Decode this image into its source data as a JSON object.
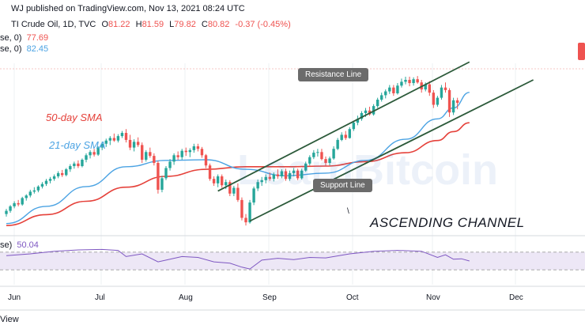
{
  "header": {
    "published": "WJ published on TradingView.com, Nov 13, 2021 08:24 UTC",
    "symbol": "TI Crude Oil, 1D, TVC",
    "o_label": "O",
    "o": "81.22",
    "h_label": "H",
    "h": "81.59",
    "l_label": "L",
    "l": "79.82",
    "c_label": "C",
    "c": "80.82",
    "change": "-0.37 (-0.45%)",
    "ma1_label": "se, 0)",
    "ma1": "77.69",
    "ma2_label": "se, 0)",
    "ma2": "82.45",
    "rsi_label": "se)",
    "rsi": "50.04"
  },
  "annotations": {
    "resistance": "Resistance Line",
    "support": "Support Line",
    "sma50": "50-day SMA",
    "sma21": "21-day SMA",
    "channel": "ASCENDING CHANNEL",
    "watermark": "LearnBitcoin",
    "footer": "View",
    "tick_mark": "\\"
  },
  "colors": {
    "up": "#26a69a",
    "down": "#ef5350",
    "sma21": "#4ba3e3",
    "sma50": "#e5413a",
    "channel": "#2c5a3a",
    "rsi_line": "#7e57c2",
    "rsi_band": "#ede7f6"
  },
  "chart_data": {
    "type": "candlestick",
    "x_axis_labels": [
      "Jun",
      "Jul",
      "Aug",
      "Sep",
      "Oct",
      "Nov",
      "Dec"
    ],
    "ylim": [
      61,
      87
    ],
    "candles": [
      [
        63.4,
        64.2,
        63.0,
        63.9
      ],
      [
        63.9,
        64.8,
        63.6,
        64.6
      ],
      [
        64.6,
        65.4,
        64.3,
        65.1
      ],
      [
        65.1,
        65.6,
        64.6,
        64.9
      ],
      [
        64.9,
        66.1,
        64.7,
        65.9
      ],
      [
        65.9,
        66.5,
        65.5,
        66.3
      ],
      [
        66.3,
        67.2,
        66.0,
        66.9
      ],
      [
        66.9,
        67.6,
        66.6,
        67.1
      ],
      [
        67.1,
        67.9,
        66.8,
        67.7
      ],
      [
        67.7,
        68.4,
        67.4,
        68.1
      ],
      [
        68.1,
        68.9,
        67.8,
        68.6
      ],
      [
        68.6,
        69.2,
        68.2,
        68.9
      ],
      [
        68.9,
        69.6,
        68.6,
        69.3
      ],
      [
        69.3,
        70.1,
        69.0,
        69.8
      ],
      [
        69.8,
        70.3,
        69.2,
        69.5
      ],
      [
        69.5,
        70.6,
        69.3,
        70.4
      ],
      [
        70.4,
        71.2,
        70.0,
        70.9
      ],
      [
        70.9,
        71.6,
        70.5,
        71.3
      ],
      [
        71.3,
        71.8,
        70.6,
        70.9
      ],
      [
        70.9,
        72.1,
        70.7,
        71.9
      ],
      [
        71.9,
        72.9,
        71.5,
        72.6
      ],
      [
        72.6,
        73.4,
        72.1,
        73.1
      ],
      [
        73.1,
        73.6,
        72.4,
        72.7
      ],
      [
        72.7,
        74.0,
        72.5,
        73.8
      ],
      [
        73.8,
        74.7,
        73.4,
        74.4
      ],
      [
        74.4,
        75.2,
        73.9,
        74.9
      ],
      [
        74.9,
        75.6,
        74.2,
        75.3
      ],
      [
        75.3,
        76.0,
        74.7,
        74.9
      ],
      [
        74.9,
        75.9,
        74.6,
        75.6
      ],
      [
        75.6,
        76.4,
        75.3,
        76.1
      ],
      [
        76.1,
        76.7,
        74.6,
        75.0
      ],
      [
        75.0,
        75.8,
        73.4,
        73.8
      ],
      [
        73.8,
        75.1,
        73.2,
        74.7
      ],
      [
        74.7,
        75.4,
        73.9,
        74.2
      ],
      [
        74.2,
        74.6,
        71.4,
        71.9
      ],
      [
        71.9,
        73.4,
        71.6,
        73.1
      ],
      [
        73.1,
        73.8,
        72.2,
        72.5
      ],
      [
        72.5,
        72.9,
        71.0,
        71.4
      ],
      [
        71.4,
        71.7,
        66.6,
        67.2
      ],
      [
        67.2,
        69.4,
        66.8,
        69.0
      ],
      [
        69.0,
        70.9,
        68.7,
        70.6
      ],
      [
        70.6,
        72.0,
        70.2,
        71.6
      ],
      [
        71.6,
        72.9,
        71.1,
        72.6
      ],
      [
        72.6,
        73.2,
        71.9,
        72.3
      ],
      [
        72.3,
        73.6,
        71.9,
        73.3
      ],
      [
        73.3,
        73.8,
        72.5,
        73.1
      ],
      [
        73.1,
        73.7,
        72.3,
        73.4
      ],
      [
        73.4,
        74.4,
        73.0,
        74.0
      ],
      [
        74.0,
        74.4,
        73.2,
        73.6
      ],
      [
        73.6,
        73.9,
        72.2,
        72.6
      ],
      [
        72.6,
        72.8,
        70.6,
        71.0
      ],
      [
        71.0,
        71.3,
        68.6,
        68.9
      ],
      [
        68.9,
        69.3,
        67.8,
        68.2
      ],
      [
        68.2,
        69.6,
        67.6,
        69.3
      ],
      [
        69.3,
        69.6,
        67.5,
        67.9
      ],
      [
        67.9,
        68.8,
        67.3,
        68.4
      ],
      [
        68.4,
        68.7,
        66.2,
        66.6
      ],
      [
        66.6,
        67.8,
        66.2,
        67.5
      ],
      [
        67.5,
        68.2,
        65.3,
        65.6
      ],
      [
        65.6,
        66.0,
        62.4,
        62.8
      ],
      [
        62.8,
        63.4,
        61.6,
        62.1
      ],
      [
        62.1,
        65.6,
        61.9,
        65.2
      ],
      [
        65.2,
        67.7,
        64.8,
        67.4
      ],
      [
        67.4,
        68.8,
        67.0,
        68.4
      ],
      [
        68.4,
        69.2,
        67.8,
        68.7
      ],
      [
        68.7,
        69.6,
        68.2,
        69.2
      ],
      [
        69.2,
        69.9,
        68.6,
        68.9
      ],
      [
        68.9,
        69.9,
        68.5,
        69.6
      ],
      [
        69.6,
        70.4,
        68.9,
        69.3
      ],
      [
        69.3,
        70.4,
        69.0,
        70.1
      ],
      [
        70.1,
        70.5,
        68.6,
        68.9
      ],
      [
        68.9,
        70.2,
        68.6,
        69.8
      ],
      [
        69.8,
        70.6,
        69.3,
        70.2
      ],
      [
        70.2,
        70.5,
        68.7,
        69.0
      ],
      [
        69.0,
        70.5,
        68.8,
        70.2
      ],
      [
        70.2,
        71.6,
        70.0,
        71.3
      ],
      [
        71.3,
        72.6,
        71.0,
        72.3
      ],
      [
        72.3,
        73.4,
        72.0,
        73.0
      ],
      [
        73.0,
        73.6,
        72.4,
        73.1
      ],
      [
        73.1,
        73.6,
        71.8,
        72.0
      ],
      [
        72.0,
        72.4,
        70.9,
        71.4
      ],
      [
        71.4,
        72.4,
        71.0,
        72.1
      ],
      [
        72.1,
        74.0,
        71.9,
        73.6
      ],
      [
        73.6,
        75.3,
        73.4,
        75.0
      ],
      [
        75.0,
        76.2,
        74.8,
        75.8
      ],
      [
        75.8,
        76.4,
        75.0,
        75.3
      ],
      [
        75.3,
        77.0,
        75.2,
        76.7
      ],
      [
        76.7,
        78.0,
        76.4,
        77.7
      ],
      [
        77.7,
        78.8,
        77.3,
        78.3
      ],
      [
        78.3,
        79.5,
        78.0,
        79.2
      ],
      [
        79.2,
        80.0,
        78.6,
        79.6
      ],
      [
        79.6,
        80.2,
        78.8,
        79.0
      ],
      [
        79.0,
        80.6,
        78.8,
        80.3
      ],
      [
        80.3,
        81.6,
        80.0,
        81.3
      ],
      [
        81.3,
        82.4,
        81.0,
        82.0
      ],
      [
        82.0,
        82.9,
        81.5,
        82.6
      ],
      [
        82.6,
        83.6,
        82.2,
        83.2
      ],
      [
        83.2,
        83.6,
        81.9,
        82.3
      ],
      [
        82.3,
        83.9,
        82.1,
        83.5
      ],
      [
        83.5,
        84.6,
        83.2,
        84.1
      ],
      [
        84.1,
        84.9,
        83.7,
        84.4
      ],
      [
        84.4,
        84.9,
        83.4,
        83.9
      ],
      [
        83.9,
        84.8,
        83.5,
        84.5
      ],
      [
        84.5,
        85.0,
        83.8,
        84.0
      ],
      [
        84.0,
        84.4,
        82.4,
        82.9
      ],
      [
        82.9,
        84.0,
        82.6,
        83.7
      ],
      [
        83.7,
        84.2,
        81.9,
        82.4
      ],
      [
        82.4,
        82.8,
        80.0,
        80.5
      ],
      [
        80.5,
        81.9,
        80.2,
        81.6
      ],
      [
        81.6,
        83.6,
        81.3,
        83.2
      ],
      [
        83.2,
        84.0,
        82.4,
        82.8
      ],
      [
        82.8,
        83.1,
        78.6,
        79.3
      ],
      [
        79.3,
        81.6,
        78.9,
        81.2
      ],
      [
        81.2,
        81.6,
        79.8,
        80.8
      ]
    ],
    "sma21": [
      [
        0,
        61.9
      ],
      [
        10,
        64.6
      ],
      [
        20,
        67.7
      ],
      [
        30,
        70.8
      ],
      [
        40,
        71.8
      ],
      [
        50,
        71.9
      ],
      [
        60,
        70.4
      ],
      [
        70,
        69.4
      ],
      [
        80,
        69.8
      ],
      [
        90,
        71.8
      ],
      [
        100,
        75.1
      ],
      [
        108,
        78.3
      ],
      [
        112,
        80.0
      ],
      [
        116,
        82.45
      ]
    ],
    "sma50": [
      [
        0,
        61.6
      ],
      [
        10,
        63.3
      ],
      [
        20,
        65.4
      ],
      [
        30,
        67.6
      ],
      [
        40,
        69.3
      ],
      [
        50,
        70.4
      ],
      [
        60,
        70.8
      ],
      [
        70,
        70.8
      ],
      [
        80,
        70.9
      ],
      [
        90,
        71.6
      ],
      [
        100,
        73.0
      ],
      [
        108,
        74.9
      ],
      [
        112,
        76.3
      ],
      [
        116,
        77.69
      ]
    ],
    "channel_lines": {
      "upper": [
        [
          53,
          67.0
        ],
        [
          116,
          87.2
        ]
      ],
      "lower": [
        [
          61,
          62.3
        ],
        [
          132,
          84.4
        ]
      ]
    },
    "rsi": {
      "ylim": [
        0,
        100
      ],
      "levels": [
        70,
        30
      ],
      "values": [
        [
          0,
          62
        ],
        [
          6,
          66
        ],
        [
          12,
          72
        ],
        [
          18,
          75
        ],
        [
          24,
          76
        ],
        [
          28,
          74
        ],
        [
          30,
          60
        ],
        [
          34,
          66
        ],
        [
          38,
          48
        ],
        [
          40,
          52
        ],
        [
          44,
          60
        ],
        [
          48,
          58
        ],
        [
          52,
          48
        ],
        [
          56,
          45
        ],
        [
          59,
          36
        ],
        [
          61,
          32
        ],
        [
          64,
          52
        ],
        [
          68,
          56
        ],
        [
          72,
          53
        ],
        [
          76,
          58
        ],
        [
          80,
          57
        ],
        [
          86,
          66
        ],
        [
          92,
          72
        ],
        [
          98,
          74
        ],
        [
          104,
          72
        ],
        [
          108,
          58
        ],
        [
          110,
          64
        ],
        [
          112,
          54
        ],
        [
          114,
          55
        ],
        [
          116,
          50.04
        ]
      ]
    }
  }
}
